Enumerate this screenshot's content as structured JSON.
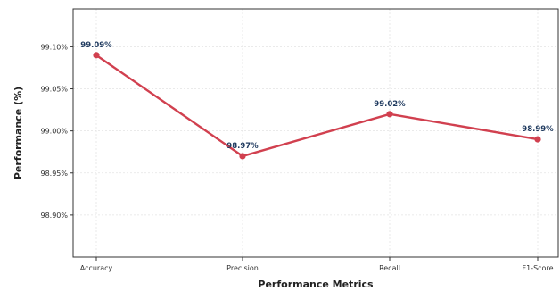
{
  "chart_data": {
    "type": "line",
    "title": "",
    "xlabel": "Performance Metrics",
    "ylabel": "Performance (%)",
    "categories": [
      "Accuracy",
      "Precision",
      "Recall",
      "F1-Score"
    ],
    "ylim": [
      98.85,
      99.145
    ],
    "yticks": [
      98.9,
      98.95,
      99.0,
      99.05,
      99.1
    ],
    "ytick_labels": [
      "98.90%",
      "98.95%",
      "99.00%",
      "99.05%",
      "99.10%"
    ],
    "series": [
      {
        "values": [
          99.09,
          98.97,
          99.02,
          98.99
        ],
        "data_labels": [
          "99.09%",
          "98.97%",
          "99.02%",
          "98.99%"
        ],
        "color": "#d1404f"
      }
    ],
    "grid": true,
    "label_color": "#1f3a5f"
  }
}
